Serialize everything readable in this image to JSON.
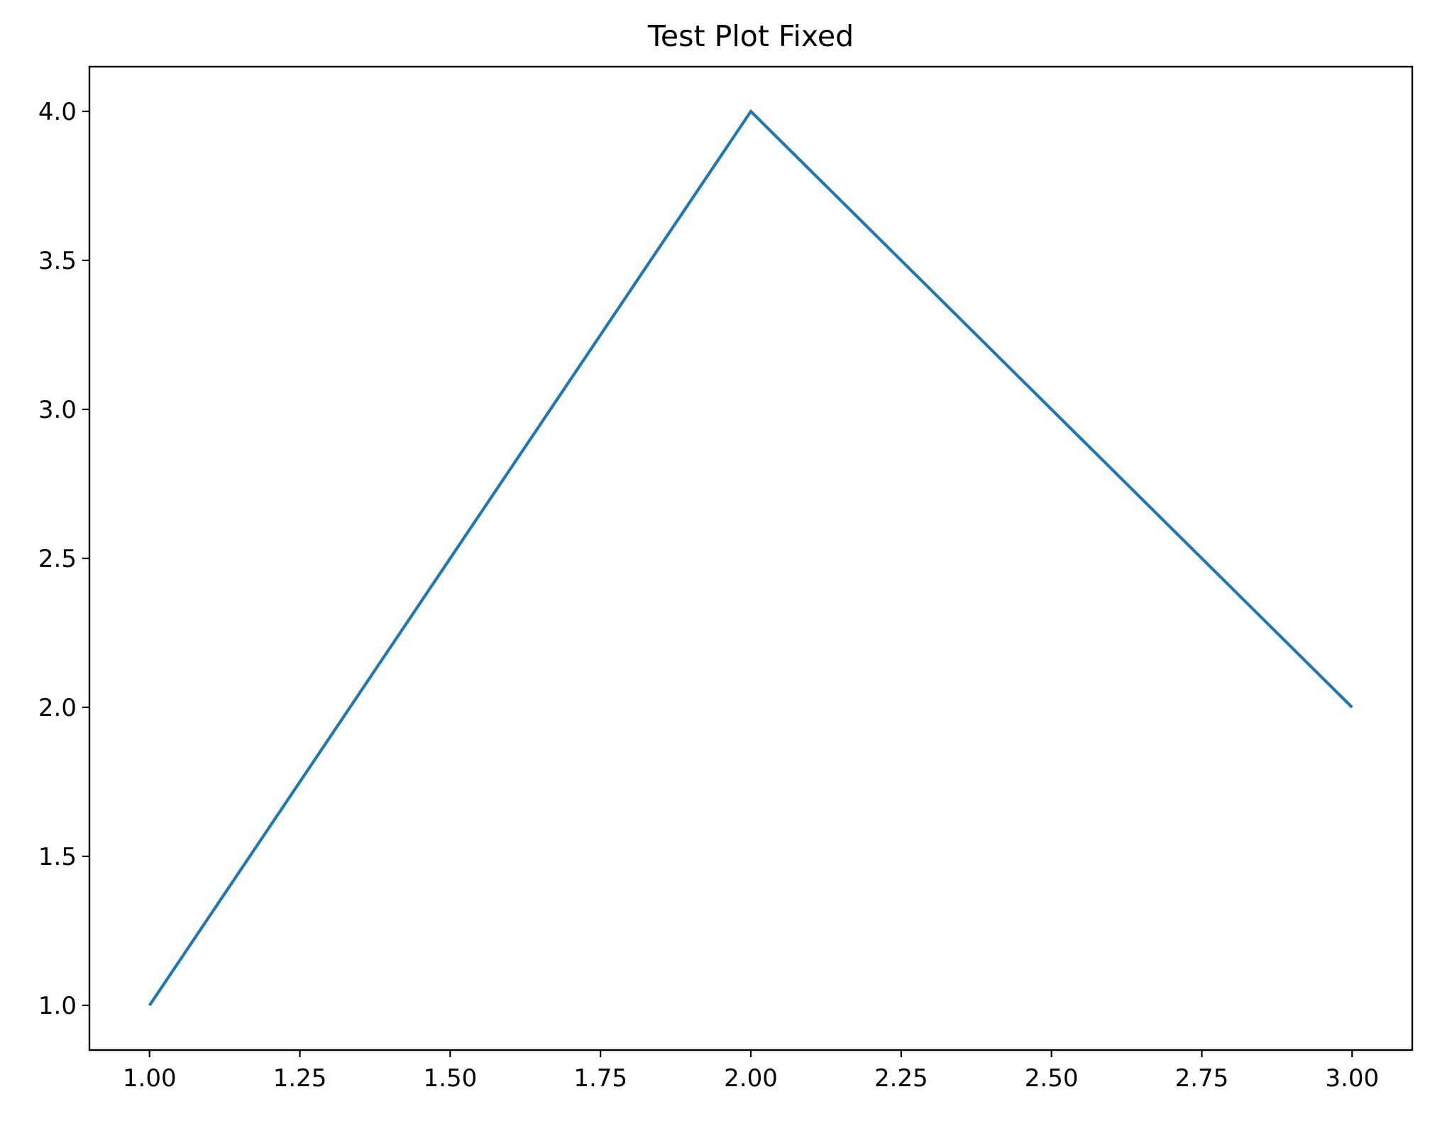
{
  "chart_data": {
    "type": "line",
    "title": "Test Plot Fixed",
    "xlabel": "",
    "ylabel": "",
    "x": [
      1,
      2,
      3
    ],
    "series": [
      {
        "values": [
          1,
          4,
          2
        ],
        "color": "#1f77b4"
      }
    ],
    "xlim": [
      0.9,
      3.1
    ],
    "ylim": [
      0.85,
      4.15
    ],
    "xticks": [
      1.0,
      1.25,
      1.5,
      1.75,
      2.0,
      2.25,
      2.5,
      2.75,
      3.0
    ],
    "xtick_labels": [
      "1.00",
      "1.25",
      "1.50",
      "1.75",
      "2.00",
      "2.25",
      "2.50",
      "2.75",
      "3.00"
    ],
    "yticks": [
      1.0,
      1.5,
      2.0,
      2.5,
      3.0,
      3.5,
      4.0
    ],
    "ytick_labels": [
      "1.0",
      "1.5",
      "2.0",
      "2.5",
      "3.0",
      "3.5",
      "4.0"
    ],
    "grid": false,
    "legend": "none"
  }
}
